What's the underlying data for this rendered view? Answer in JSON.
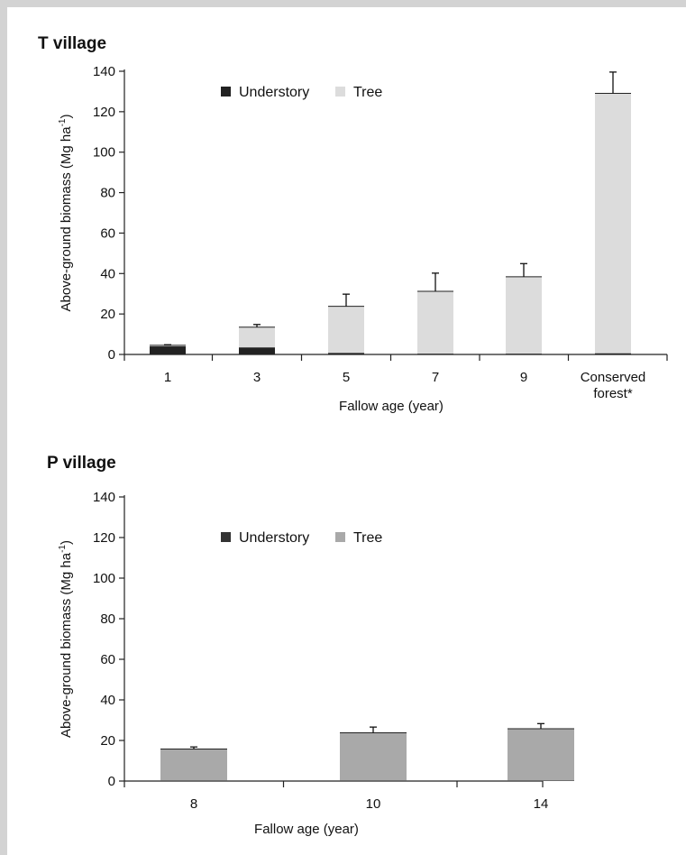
{
  "chart_data": [
    {
      "type": "bar",
      "stacked": true,
      "title": "T village",
      "xlabel": "Fallow age (year)",
      "ylabel": "Above-ground biomass (Mg ha",
      "ylabel_sup": "-1",
      "ylabel_close": ")",
      "ylim": [
        0,
        140
      ],
      "yticks": [
        0,
        20,
        40,
        60,
        80,
        100,
        120,
        140
      ],
      "categories": [
        [
          "1"
        ],
        [
          "3"
        ],
        [
          "5"
        ],
        [
          "7"
        ],
        [
          "9"
        ],
        [
          "Conserved",
          "forest*"
        ]
      ],
      "legend_position": "top-left",
      "series": [
        {
          "name": "Understory",
          "color": "#222222",
          "values": [
            4,
            3.5,
            0.8,
            0.4,
            0.4,
            0.6
          ]
        },
        {
          "name": "Tree",
          "color": "#dcdcdc",
          "values": [
            0.5,
            10,
            23,
            30.8,
            38,
            128.5
          ]
        }
      ],
      "error_upper": [
        0.3,
        1.3,
        6,
        9,
        6.5,
        10.5
      ]
    },
    {
      "type": "bar",
      "stacked": true,
      "title": "P village",
      "xlabel": "Fallow age (year)",
      "ylabel": "Above-ground biomass (Mg ha",
      "ylabel_sup": "-1",
      "ylabel_close": ")",
      "ylim": [
        0,
        140
      ],
      "yticks": [
        0,
        20,
        40,
        60,
        80,
        100,
        120,
        140
      ],
      "categories": [
        [
          "8"
        ],
        [
          "10"
        ],
        [
          "14"
        ]
      ],
      "legend_position": "top-left",
      "series": [
        {
          "name": "Understory",
          "color": "#333333",
          "values": [
            0.3,
            0.3,
            0.3
          ]
        },
        {
          "name": "Tree",
          "color": "#a9a9a9",
          "values": [
            15.5,
            23.5,
            25.5
          ]
        }
      ],
      "error_upper": [
        1,
        2.8,
        2.5
      ]
    }
  ]
}
